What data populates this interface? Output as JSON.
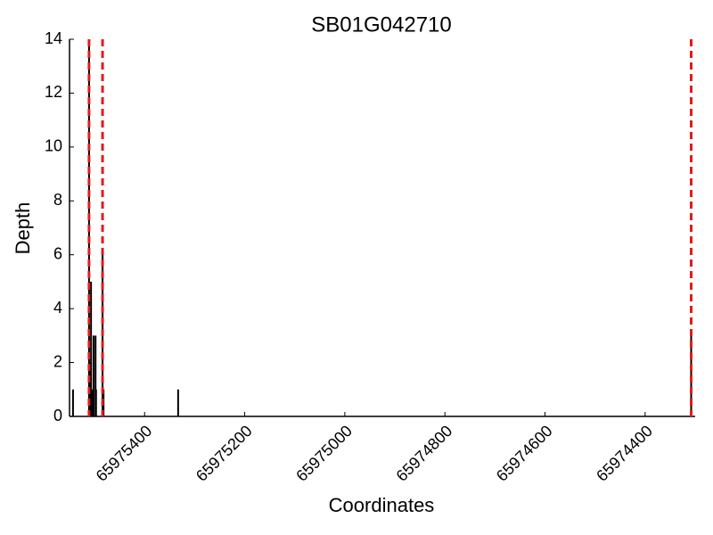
{
  "chart_data": {
    "type": "bar",
    "title": "SB01G042710",
    "x_label": "Coordinates",
    "y_label": "Depth",
    "x": [
      65975543,
      65975511,
      65975509,
      65975507,
      65975505,
      65975502,
      65975498,
      65975497,
      65975484,
      65975482,
      65975333,
      65974308
    ],
    "values": [
      1,
      14,
      2,
      5,
      1,
      3,
      3,
      1,
      6,
      1,
      1,
      3
    ],
    "color": "#000000",
    "xlim": [
      65975550,
      65974300
    ],
    "xticks": [
      65975400,
      65975200,
      65975000,
      65974800,
      65974600,
      65974400
    ],
    "ylim": [
      0,
      14
    ],
    "yticks": [
      0,
      2,
      4,
      6,
      8,
      10,
      12,
      14
    ],
    "vlines": [
      65975511,
      65975484,
      65974308
    ],
    "vline_color": "#e31a1c"
  }
}
